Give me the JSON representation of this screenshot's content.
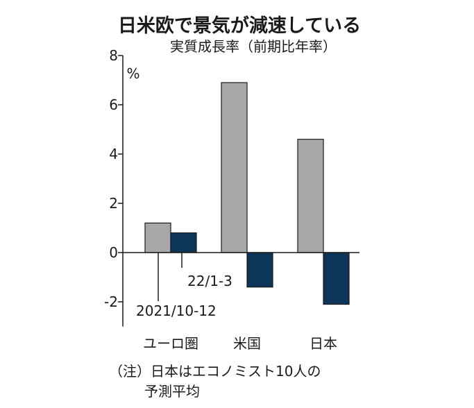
{
  "chart_data": {
    "type": "bar",
    "title": "日米欧で景気が減速している",
    "subtitle": "実質成長率（前期比年率）",
    "ylabel": "%",
    "ylim": [
      -3,
      8
    ],
    "yticks": [
      "8",
      "6",
      "4",
      "2",
      "0",
      "-2"
    ],
    "categories": [
      "ユーロ圏",
      "米国",
      "日本"
    ],
    "series": [
      {
        "name": "2021/10-12",
        "color": "#a8a8aa",
        "values": [
          1.2,
          6.9,
          4.6
        ]
      },
      {
        "name": "22/1-3",
        "color": "#0c3558",
        "values": [
          0.8,
          -1.4,
          -2.1
        ]
      }
    ],
    "note_lines": [
      "（注）日本はエコノミスト10人の",
      "予測平均"
    ]
  }
}
